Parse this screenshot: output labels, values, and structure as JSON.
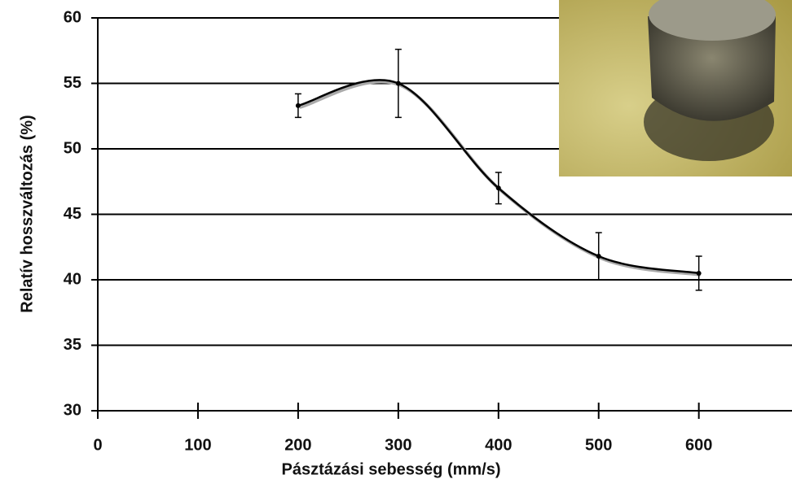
{
  "chart_data": {
    "type": "line",
    "x_label": "Pásztázási sebesség (mm/s)",
    "y_label": "Relatív hosszváltozás (%)",
    "x": [
      200,
      300,
      400,
      500,
      600
    ],
    "values": [
      53.3,
      55,
      47,
      41.8,
      40.5
    ],
    "errors": [
      0.9,
      2.6,
      1.2,
      1.8,
      1.3
    ],
    "color": "#000000",
    "xlim": [
      0,
      693
    ],
    "xticks": [
      0,
      100,
      200,
      300,
      400,
      500,
      600
    ],
    "ylim": [
      30,
      60
    ],
    "yticks": [
      30,
      35,
      40,
      45,
      50,
      55,
      60
    ],
    "grid": true
  }
}
